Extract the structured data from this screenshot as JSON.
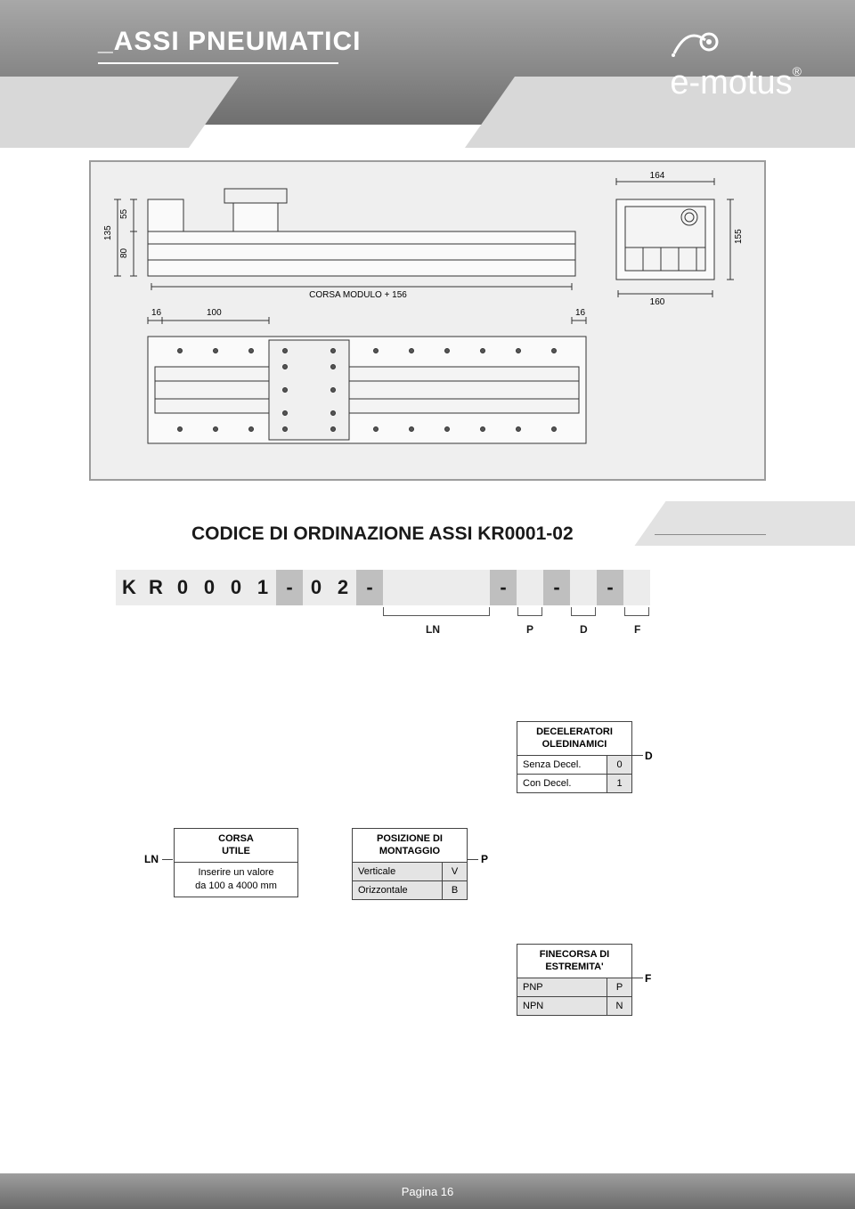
{
  "header": {
    "title": "_ASSI PNEUMATICI",
    "logo_text": "e-motus",
    "logo_reg": "®"
  },
  "section": {
    "title": "CODICE DI ORDINAZIONE ASSI KR0001-02"
  },
  "code_strip": {
    "cells": [
      {
        "t": "K",
        "cls": "light"
      },
      {
        "t": "R",
        "cls": "light"
      },
      {
        "t": "0",
        "cls": "light"
      },
      {
        "t": "0",
        "cls": "light"
      },
      {
        "t": "0",
        "cls": "light"
      },
      {
        "t": "1",
        "cls": "light"
      },
      {
        "t": "-",
        "cls": "dark"
      },
      {
        "t": "0",
        "cls": "light"
      },
      {
        "t": "2",
        "cls": "light"
      },
      {
        "t": "-",
        "cls": "dark"
      },
      {
        "t": "",
        "cls": "light"
      },
      {
        "t": "",
        "cls": "light"
      },
      {
        "t": "",
        "cls": "light"
      },
      {
        "t": "",
        "cls": "light"
      },
      {
        "t": "-",
        "cls": "dark"
      },
      {
        "t": "",
        "cls": "light"
      },
      {
        "t": "-",
        "cls": "dark"
      },
      {
        "t": "",
        "cls": "light"
      },
      {
        "t": "-",
        "cls": "dark"
      },
      {
        "t": "",
        "cls": "light"
      }
    ]
  },
  "brackets": {
    "ln": "LN",
    "p": "P",
    "d": "D",
    "f": "F"
  },
  "tables": {
    "decel": {
      "header1": "DECELERATORI",
      "header2": "OLEDINAMICI",
      "r1_label": "Senza Decel.",
      "r1_code": "0",
      "r2_label": "Con Decel.",
      "r2_code": "1",
      "side": "D"
    },
    "corsa": {
      "header1": "CORSA",
      "header2": "UTILE",
      "note1": "Inserire un valore",
      "note2": "da 100 a 4000 mm",
      "side": "LN"
    },
    "posizione": {
      "header1": "POSIZIONE DI",
      "header2": "MONTAGGIO",
      "r1_label": "Verticale",
      "r1_code": "V",
      "r2_label": "Orizzontale",
      "r2_code": "B",
      "side": "P"
    },
    "finecorsa": {
      "header1": "FINECORSA DI",
      "header2": "ESTREMITA'",
      "r1_label": "PNP",
      "r1_code": "P",
      "r2_label": "NPN",
      "r2_code": "N",
      "side": "F"
    }
  },
  "diagram": {
    "corsa_label": "CORSA MODULO + 156",
    "dims": {
      "d16a": "16",
      "d100": "100",
      "d16b": "16",
      "d135": "135",
      "d55": "55",
      "d80": "80",
      "d164": "164",
      "d160": "160",
      "d155": "155"
    }
  },
  "footer": {
    "page": "Pagina 16"
  },
  "colors": {
    "header_grad_top": "#a8a8a8",
    "header_grad_bottom": "#6f6f6f",
    "panel_border": "#9c9c9c",
    "light_cell": "#ececec",
    "dark_cell": "#bfbfbf"
  }
}
